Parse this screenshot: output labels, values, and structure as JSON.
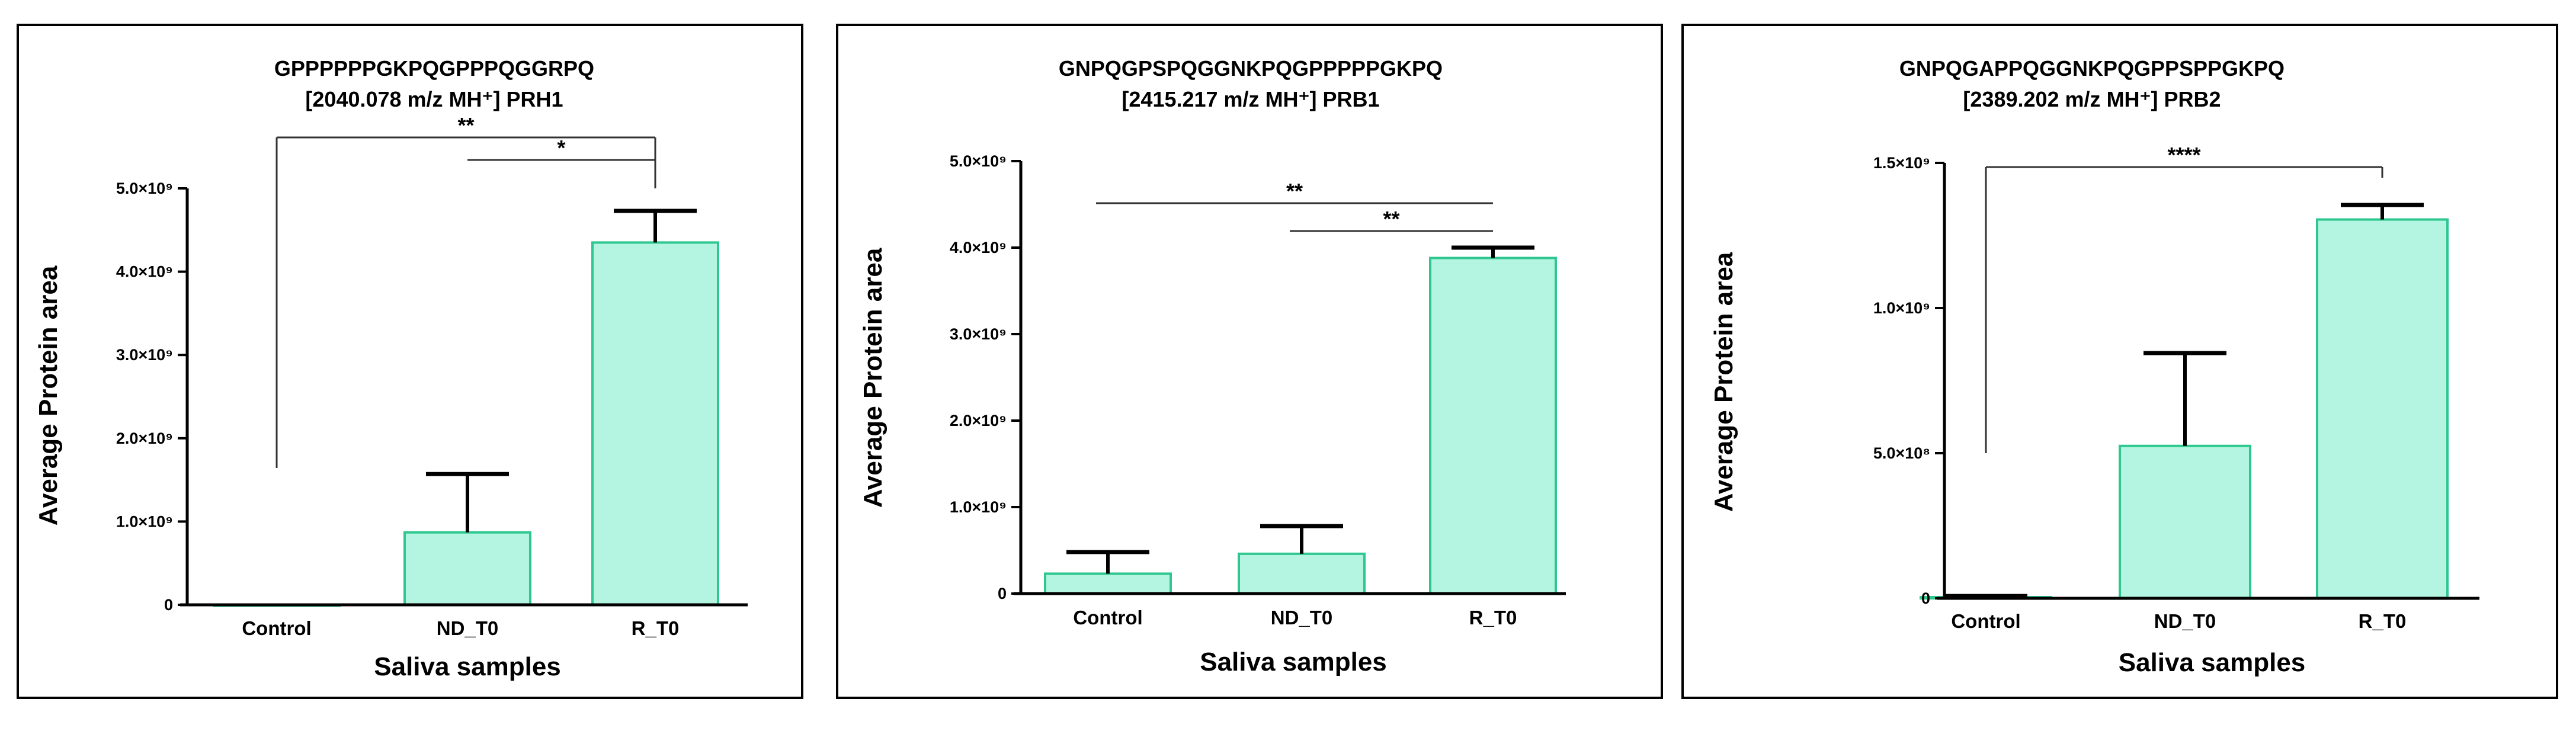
{
  "colors": {
    "bar_fill": "#b3f5e0",
    "bar_stroke": "#2ec78f",
    "ink": "#000000",
    "background": "#ffffff"
  },
  "chart_data": [
    {
      "type": "bar",
      "title_line1": "GPPPPPPGKPQGPPPQGGRPQ",
      "title_line2": "[2040.078 m/z MH⁺] PRH1",
      "xlabel": "Saliva samples",
      "ylabel": "Average Protein area",
      "categories": [
        "Control",
        "ND_T0",
        "R_T0"
      ],
      "values": [
        0,
        870000000,
        4350000000
      ],
      "error_up": [
        0,
        700000000,
        380000000
      ],
      "ylim": [
        0,
        5000000000
      ],
      "ytick_values": [
        0,
        1000000000,
        2000000000,
        3000000000,
        4000000000,
        5000000000
      ],
      "ytick_labels": [
        "0",
        "1.0×10⁹",
        "2.0×10⁹",
        "3.0×10⁹",
        "4.0×10⁹",
        "5.0×10⁹"
      ],
      "significance": [
        {
          "from": 1,
          "to": 2,
          "label": "*"
        },
        {
          "from": 0,
          "to": 2,
          "label": "**"
        }
      ]
    },
    {
      "type": "bar",
      "title_line1": "GNPQGPSPQGGNKPQGPPPPPGKPQ",
      "title_line2": "[2415.217 m/z MH⁺] PRB1",
      "xlabel": "Saliva samples",
      "ylabel": "Average Protein area",
      "categories": [
        "Control",
        "ND_T0",
        "R_T0"
      ],
      "values": [
        230000000,
        460000000,
        3880000000
      ],
      "error_up": [
        250000000,
        320000000,
        120000000
      ],
      "ylim": [
        0,
        5000000000
      ],
      "ytick_values": [
        0,
        1000000000,
        2000000000,
        3000000000,
        4000000000,
        5000000000
      ],
      "ytick_labels": [
        "0",
        "1.0×10⁹",
        "2.0×10⁹",
        "3.0×10⁹",
        "4.0×10⁹",
        "5.0×10⁹"
      ],
      "significance": [
        {
          "from": 0,
          "to": 2,
          "label": "**"
        },
        {
          "from": 1,
          "to": 2,
          "label": "**"
        }
      ]
    },
    {
      "type": "bar",
      "title_line1": "GNPQGAPPQGGNKPQGPPSPPGKPQ",
      "title_line2": "[2389.202 m/z MH⁺] PRB2",
      "xlabel": "Saliva samples",
      "ylabel": "Average Protein area",
      "categories": [
        "Control",
        "ND_T0",
        "R_T0"
      ],
      "values": [
        4000000,
        525000000,
        1305000000
      ],
      "error_up": [
        4000000,
        320000000,
        50000000
      ],
      "ylim": [
        0,
        1500000000
      ],
      "ytick_values": [
        0,
        500000000,
        1000000000,
        1500000000
      ],
      "ytick_labels": [
        "0",
        "5.0×10⁸",
        "1.0×10⁹",
        "1.5×10⁹"
      ],
      "significance": [
        {
          "from": 0,
          "to": 2,
          "label": "****"
        }
      ]
    }
  ]
}
